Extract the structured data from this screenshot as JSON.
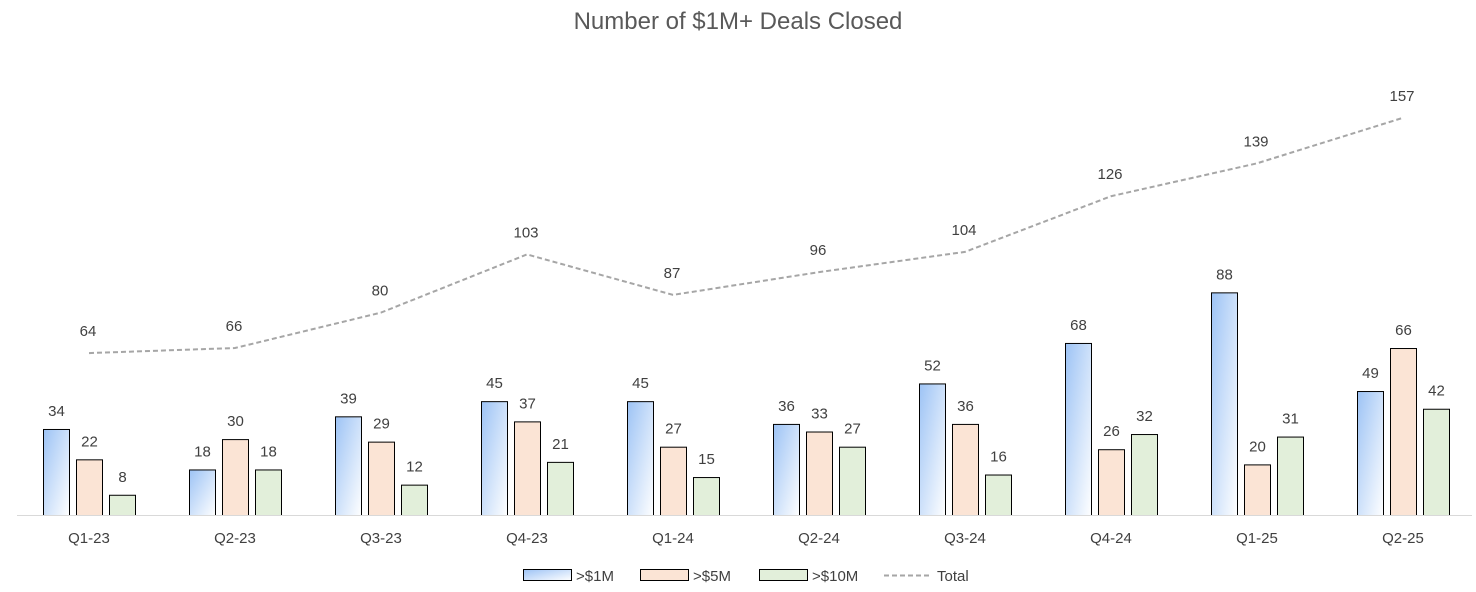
{
  "chart_data": {
    "type": "bar",
    "title": "Number of $1M+ Deals Closed",
    "xlabel": "",
    "ylabel": "",
    "categories": [
      "Q1-23",
      "Q2-23",
      "Q3-23",
      "Q4-23",
      "Q1-24",
      "Q2-24",
      "Q3-24",
      "Q4-24",
      "Q1-25",
      "Q2-25"
    ],
    "series": [
      {
        "name": ">$1M",
        "kind": "bar",
        "values": [
          34,
          18,
          39,
          45,
          45,
          36,
          52,
          68,
          88,
          49
        ],
        "color": "#9dc3f5",
        "fade": "#ffffff"
      },
      {
        "name": ">$5M",
        "kind": "bar",
        "values": [
          22,
          30,
          29,
          37,
          27,
          33,
          36,
          26,
          20,
          66
        ],
        "color": "#fbe4d5"
      },
      {
        "name": ">$10M",
        "kind": "bar",
        "values": [
          8,
          18,
          12,
          21,
          15,
          27,
          16,
          32,
          31,
          42
        ],
        "color": "#e2efda"
      },
      {
        "name": "Total",
        "kind": "line",
        "style": "dashed",
        "values": [
          64,
          66,
          80,
          103,
          87,
          96,
          104,
          126,
          139,
          157
        ],
        "color": "#a6a6a6"
      }
    ],
    "data_labels": true,
    "grid": false,
    "legend": "bottom"
  }
}
